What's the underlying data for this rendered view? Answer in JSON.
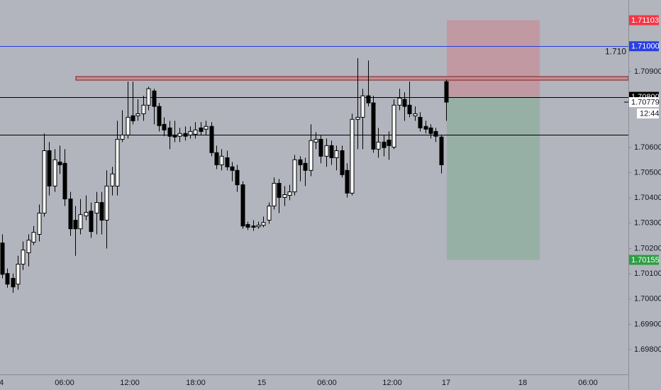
{
  "chart_data": {
    "type": "candlestick",
    "open": [
      1.70222,
      1.70101,
      1.70082,
      1.70059,
      1.70138,
      1.70183,
      1.70225,
      1.70256,
      1.7034,
      1.70587,
      1.70447,
      1.70542,
      1.70537,
      1.70396,
      1.70312,
      1.70278,
      1.70329,
      1.70348,
      1.7034,
      1.70382,
      1.70312,
      1.70447,
      1.70447,
      1.70632,
      1.70649,
      1.70725,
      1.70725,
      1.70733,
      1.70767,
      1.70823,
      1.70762,
      1.70691,
      1.70677,
      1.70649,
      1.70644,
      1.70655,
      1.70649,
      1.70652,
      1.70677,
      1.70672,
      1.70683,
      1.70579,
      1.70531,
      1.70559,
      1.70523,
      1.70509,
      1.70452,
      1.70295,
      1.70289,
      1.70286,
      1.70292,
      1.70312,
      1.70368,
      1.70458,
      1.70402,
      1.7041,
      1.70424,
      1.70551,
      1.70537,
      1.70509,
      1.70621,
      1.70632,
      1.70565,
      1.70607,
      1.70559,
      1.70587,
      1.70509,
      1.70419,
      1.70711,
      1.70719,
      1.70804,
      1.70776,
      1.70593,
      1.70621,
      1.70629,
      1.70601,
      1.70767,
      1.7079,
      1.70767,
      1.70725,
      1.70719,
      1.70683,
      1.70677,
      1.70663,
      1.70641,
      1.7086
    ],
    "high": [
      1.70256,
      1.70121,
      1.70101,
      1.70171,
      1.70228,
      1.70256,
      1.70289,
      1.70374,
      1.70655,
      1.70621,
      1.70593,
      1.70607,
      1.70593,
      1.70424,
      1.70368,
      1.70396,
      1.7041,
      1.70382,
      1.70424,
      1.70424,
      1.70509,
      1.70523,
      1.70705,
      1.70747,
      1.7086,
      1.7086,
      1.7079,
      1.70804,
      1.7084,
      1.70832,
      1.70776,
      1.70719,
      1.70705,
      1.70705,
      1.70677,
      1.70683,
      1.70683,
      1.707,
      1.707,
      1.70705,
      1.707,
      1.70607,
      1.70593,
      1.70587,
      1.70542,
      1.70531,
      1.70466,
      1.70306,
      1.70312,
      1.70306,
      1.70326,
      1.70382,
      1.70481,
      1.70475,
      1.70447,
      1.70452,
      1.7057,
      1.70565,
      1.70559,
      1.70691,
      1.7066,
      1.70649,
      1.70635,
      1.70627,
      1.70607,
      1.70607,
      1.70537,
      1.70733,
      1.70953,
      1.70832,
      1.70944,
      1.70804,
      1.70677,
      1.70649,
      1.70663,
      1.7079,
      1.70832,
      1.70818,
      1.7086,
      1.70762,
      1.70739,
      1.70705,
      1.70691,
      1.70677,
      1.70649,
      1.70868
    ],
    "low": [
      1.70082,
      1.70045,
      1.70025,
      1.70037,
      1.70115,
      1.70129,
      1.70214,
      1.70228,
      1.70326,
      1.7041,
      1.70424,
      1.70495,
      1.70368,
      1.7025,
      1.70171,
      1.70256,
      1.70312,
      1.70242,
      1.70256,
      1.70256,
      1.702,
      1.7041,
      1.7041,
      1.70621,
      1.70635,
      1.70691,
      1.70705,
      1.70705,
      1.70747,
      1.70691,
      1.70663,
      1.70644,
      1.70593,
      1.70621,
      1.70621,
      1.70627,
      1.70635,
      1.70635,
      1.70649,
      1.70649,
      1.70565,
      1.70514,
      1.70509,
      1.70509,
      1.70466,
      1.70424,
      1.70278,
      1.70273,
      1.7027,
      1.70278,
      1.70284,
      1.70298,
      1.70354,
      1.7034,
      1.70368,
      1.70391,
      1.7041,
      1.70466,
      1.70447,
      1.70486,
      1.70593,
      1.70537,
      1.70523,
      1.70531,
      1.70509,
      1.70481,
      1.70402,
      1.7041,
      1.70593,
      1.70593,
      1.70762,
      1.70579,
      1.70559,
      1.70565,
      1.70551,
      1.70593,
      1.70747,
      1.70705,
      1.70719,
      1.70705,
      1.70663,
      1.70655,
      1.70635,
      1.70621,
      1.70497,
      1.70705
    ],
    "close": [
      1.70098,
      1.70059,
      1.70048,
      1.70138,
      1.70194,
      1.70233,
      1.70264,
      1.7034,
      1.70587,
      1.70447,
      1.70551,
      1.70531,
      1.70396,
      1.70278,
      1.70278,
      1.70334,
      1.70343,
      1.70267,
      1.70382,
      1.70312,
      1.70447,
      1.70495,
      1.70632,
      1.70649,
      1.70719,
      1.70705,
      1.70733,
      1.70767,
      1.70832,
      1.70762,
      1.70686,
      1.70669,
      1.70644,
      1.70641,
      1.70655,
      1.70644,
      1.70663,
      1.70669,
      1.70663,
      1.70683,
      1.70579,
      1.70531,
      1.70565,
      1.70523,
      1.70509,
      1.70452,
      1.70289,
      1.70284,
      1.70284,
      1.70292,
      1.70303,
      1.70368,
      1.70458,
      1.70402,
      1.70413,
      1.70424,
      1.70551,
      1.70531,
      1.70509,
      1.70627,
      1.70632,
      1.70565,
      1.70607,
      1.70559,
      1.70587,
      1.70492,
      1.70419,
      1.70711,
      1.70719,
      1.70804,
      1.70776,
      1.70593,
      1.70621,
      1.70599,
      1.70607,
      1.70767,
      1.70795,
      1.70762,
      1.70733,
      1.70733,
      1.70677,
      1.70672,
      1.70655,
      1.70644,
      1.70531,
      1.70779
    ],
    "x_axis_labels": [
      "4",
      "06:00",
      "12:00",
      "18:00",
      "15",
      "06:00",
      "12:00",
      "17",
      "18",
      "06:00"
    ],
    "ylim": [
      1.69702,
      1.71183
    ],
    "yticks": [
      {
        "value": 1.709,
        "label": "1.70900"
      },
      {
        "value": 1.706,
        "label": "1.70600"
      },
      {
        "value": 1.705,
        "label": "1.70500"
      },
      {
        "value": 1.704,
        "label": "1.70400"
      },
      {
        "value": 1.703,
        "label": "1.70300"
      },
      {
        "value": 1.702,
        "label": "1.70200"
      },
      {
        "value": 1.701,
        "label": "1.70100"
      },
      {
        "value": 1.7,
        "label": "1.70000"
      },
      {
        "value": 1.699,
        "label": "1.69900"
      },
      {
        "value": 1.698,
        "label": "1.69800"
      }
    ],
    "hlines": [
      {
        "value": 1.71,
        "label": "1.71000",
        "note": "1.710",
        "color": "#2a3fe0"
      },
      {
        "value": 1.708,
        "label": "1.70800",
        "color": "#000000"
      },
      {
        "value": 1.7065,
        "color": "#000000"
      }
    ],
    "zone": {
      "top": 1.7088,
      "bottom": 1.70866,
      "color": "#c98a8e"
    },
    "position": {
      "stop": 1.71103,
      "entry": 1.708,
      "target": 1.70155,
      "stop_color": "#f23645",
      "target_color": "#2e9e44"
    },
    "last_price": 1.70779,
    "countdown": "12:44",
    "bull_color": "#ffffff",
    "bear_color": "#000000",
    "background": "#b2b5bd"
  }
}
